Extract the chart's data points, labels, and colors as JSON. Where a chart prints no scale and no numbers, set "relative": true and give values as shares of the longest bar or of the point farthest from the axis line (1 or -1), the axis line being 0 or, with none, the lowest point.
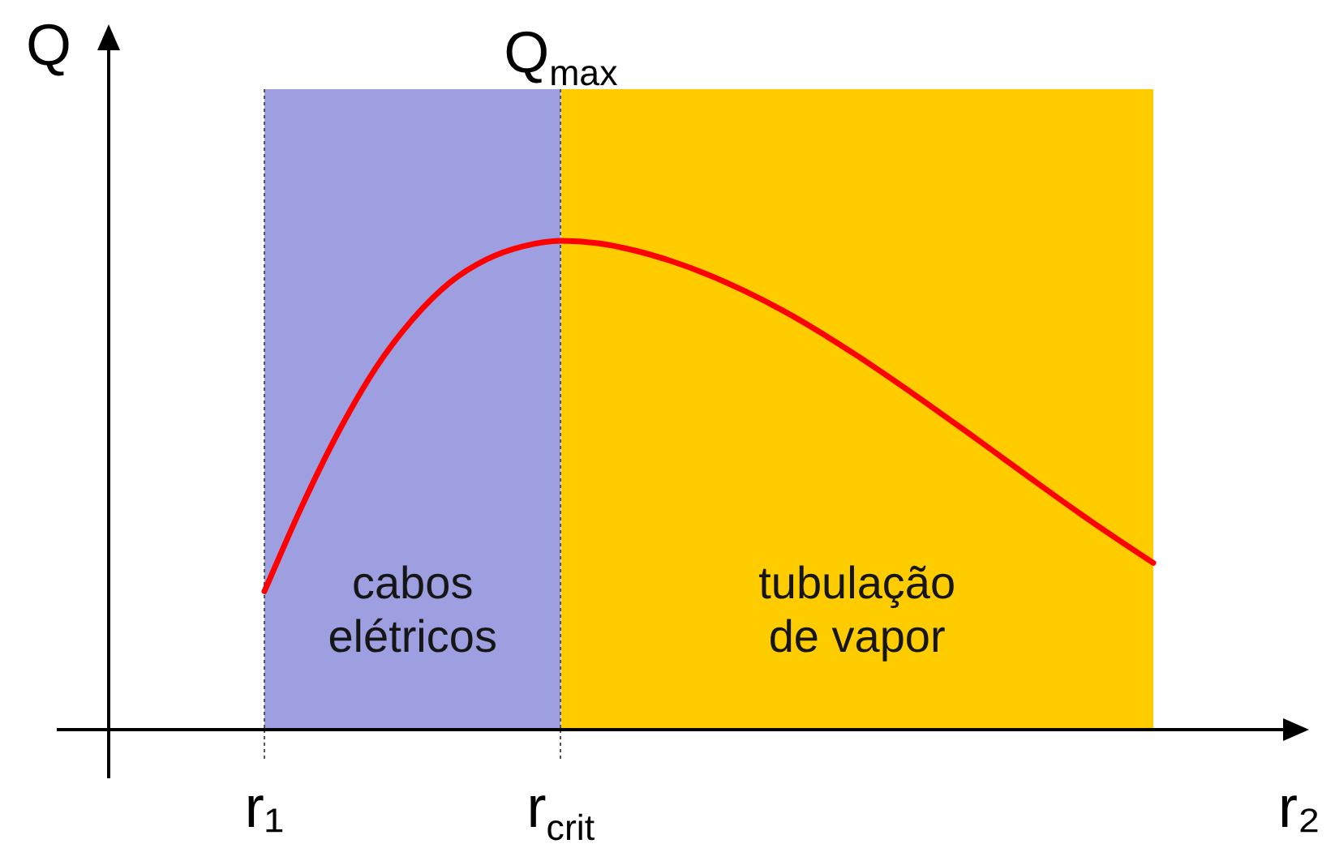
{
  "chart_data": {
    "type": "line",
    "relative": true,
    "xlabel": "r₂",
    "ylabel": "Q",
    "categories": [
      "r₁",
      null,
      null,
      null,
      null,
      null,
      null,
      null,
      "r$_{crit}$",
      null,
      null,
      null,
      null,
      null,
      null,
      null,
      null,
      null,
      null,
      null,
      null,
      null,
      null,
      null,
      null
    ],
    "series": [
      {
        "color": "#ff0000",
        "values": [
          0.283,
          0.455,
          0.609,
          0.739,
          0.839,
          0.914,
          0.962,
          0.989,
          1,
          0.995,
          0.98,
          0.958,
          0.93,
          0.896,
          0.857,
          0.813,
          0.765,
          0.714,
          0.661,
          0.607,
          0.552,
          0.497,
          0.443,
          0.391,
          0.341
        ]
      }
    ],
    "bands": [
      {
        "axis": "x",
        "from": "r₁",
        "to": "r$_{crit}$",
        "label": "cabos elétricos",
        "color": "#9e9fe0"
      }
    ],
    "annotations": [
      {
        "text": "Q$_{max}$",
        "x": "r$_{crit}$",
        "y": 1
      },
      "tubulação de vapor"
    ],
    "grid": "x",
    "legend": false,
    "marker": "none",
    "line_style": "solid",
    "tick_labels": "x"
  }
}
